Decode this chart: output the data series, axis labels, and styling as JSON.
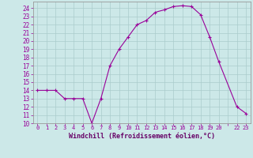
{
  "x": [
    0,
    1,
    2,
    3,
    4,
    5,
    6,
    7,
    8,
    9,
    10,
    11,
    12,
    13,
    14,
    15,
    16,
    17,
    18,
    19,
    20,
    22,
    23
  ],
  "y": [
    14,
    14,
    14,
    13,
    13,
    13,
    10,
    13,
    17,
    19,
    20.5,
    22,
    22.5,
    23.5,
    23.8,
    24.2,
    24.3,
    24.2,
    23.2,
    20.5,
    17.5,
    12,
    11.2
  ],
  "line_color": "#990099",
  "marker": "+",
  "bg_color": "#cce8e8",
  "grid_color": "#aacccc",
  "xlabel": "Windchill (Refroidissement éolien,°C)",
  "ylabel": "",
  "title": "",
  "xlim": [
    -0.5,
    23.5
  ],
  "ylim": [
    10,
    24.8
  ],
  "yticks": [
    10,
    11,
    12,
    13,
    14,
    15,
    16,
    17,
    18,
    19,
    20,
    21,
    22,
    23,
    24
  ],
  "xtick_positions": [
    0,
    1,
    2,
    3,
    4,
    5,
    6,
    7,
    8,
    9,
    10,
    11,
    12,
    13,
    14,
    15,
    16,
    17,
    18,
    19,
    20,
    21,
    22,
    23
  ],
  "xtick_labels": [
    "0",
    "1",
    "2",
    "3",
    "4",
    "5",
    "6",
    "7",
    "8",
    "9",
    "10",
    "11",
    "12",
    "13",
    "14",
    "15",
    "16",
    "17",
    "18",
    "19",
    "20",
    "",
    "22",
    "23"
  ],
  "xlabel_color": "#660066",
  "tick_color": "#990099",
  "axis_color": "#999999",
  "ytick_fontsize": 5.5,
  "xtick_fontsize": 5.0,
  "xlabel_fontsize": 6.0
}
